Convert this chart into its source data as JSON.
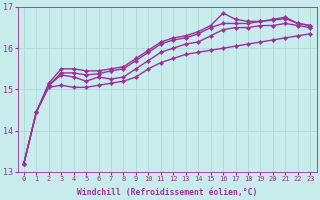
{
  "title": "",
  "xlabel": "Windchill (Refroidissement éolien,°C)",
  "ylabel": "",
  "xlim": [
    -0.5,
    23.5
  ],
  "ylim": [
    13,
    17
  ],
  "yticks": [
    13,
    14,
    15,
    16,
    17
  ],
  "xticks": [
    0,
    1,
    2,
    3,
    4,
    5,
    6,
    7,
    8,
    9,
    10,
    11,
    12,
    13,
    14,
    15,
    16,
    17,
    18,
    19,
    20,
    21,
    22,
    23
  ],
  "bg_color": "#c8ecec",
  "grid_color": "#b0d8d8",
  "line_color": "#993399",
  "line_width": 1.0,
  "marker": "D",
  "marker_size": 2.2,
  "series": [
    [
      13.2,
      14.45,
      15.05,
      15.1,
      15.05,
      15.05,
      15.1,
      15.15,
      15.2,
      15.3,
      15.5,
      15.65,
      15.75,
      15.85,
      15.9,
      15.95,
      16.0,
      16.05,
      16.1,
      16.15,
      16.2,
      16.25,
      16.3,
      16.35
    ],
    [
      13.2,
      14.45,
      15.1,
      15.35,
      15.3,
      15.2,
      15.3,
      15.25,
      15.3,
      15.5,
      15.7,
      15.9,
      16.0,
      16.1,
      16.15,
      16.3,
      16.45,
      16.5,
      16.5,
      16.55,
      16.55,
      16.6,
      16.55,
      16.5
    ],
    [
      13.2,
      14.45,
      15.15,
      15.5,
      15.5,
      15.45,
      15.45,
      15.5,
      15.55,
      15.75,
      15.95,
      16.15,
      16.25,
      16.3,
      16.4,
      16.55,
      16.85,
      16.7,
      16.65,
      16.65,
      16.7,
      16.75,
      16.6,
      16.55
    ],
    [
      13.2,
      14.45,
      15.1,
      15.4,
      15.4,
      15.35,
      15.38,
      15.45,
      15.5,
      15.7,
      15.9,
      16.1,
      16.2,
      16.25,
      16.35,
      16.5,
      16.6,
      16.6,
      16.6,
      16.65,
      16.68,
      16.72,
      16.6,
      16.55
    ]
  ]
}
